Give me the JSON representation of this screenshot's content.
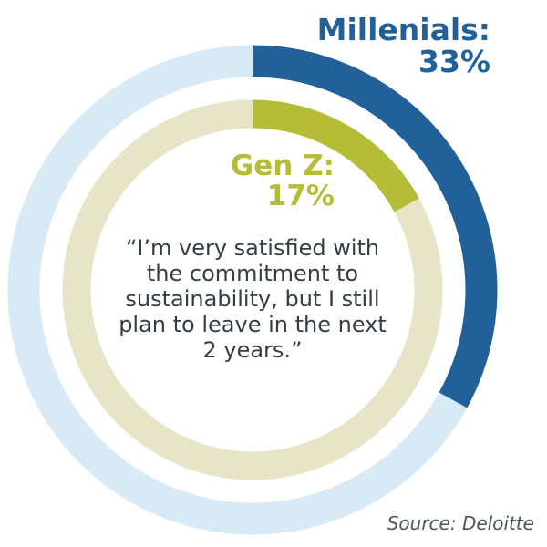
{
  "chart_data": {
    "type": "pie",
    "series": [
      {
        "name": "Millenials",
        "value": 33,
        "unit": "%",
        "color": "#22609a",
        "track_color": "#d9eaf7"
      },
      {
        "name": "Gen Z",
        "value": 17,
        "unit": "%",
        "color": "#b5bd36",
        "track_color": "#e8e4c8"
      }
    ],
    "labels": {
      "millenials_name": "Millenials:",
      "millenials_value": "33%",
      "genz_name": "Gen Z:",
      "genz_value": "17%"
    },
    "quote": "“I’m very satisfied with the commitment to sustainability, but I still plan to leave in the next 2 years.”",
    "source": "Source: Deloitte"
  }
}
